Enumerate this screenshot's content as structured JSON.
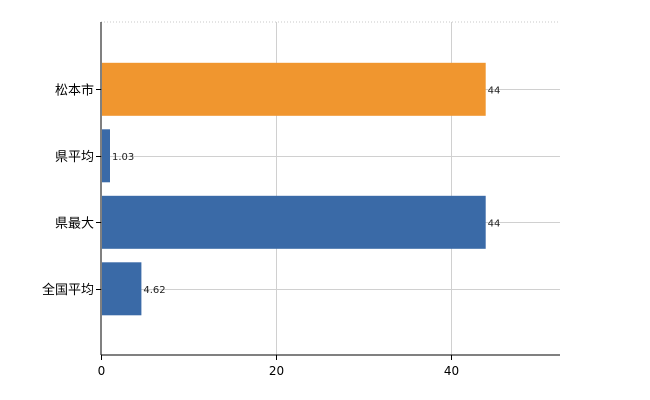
{
  "chart_data": {
    "type": "bar",
    "orientation": "horizontal",
    "categories": [
      "松本市",
      "県平均",
      "県最大",
      "全国平均"
    ],
    "values": [
      44,
      1.03,
      44,
      4.62
    ],
    "value_labels": [
      "44",
      "1.03",
      "44",
      "4.62"
    ],
    "bar_colors": [
      "#f0962f",
      "#3a6aa7",
      "#3a6aa7",
      "#3a6aa7"
    ],
    "x_ticks": [
      0,
      20,
      40
    ],
    "tick_labels": [
      "0",
      "20",
      "40"
    ],
    "xlim": [
      0,
      52.5
    ],
    "grid": true,
    "title": "",
    "xlabel": "",
    "ylabel": ""
  }
}
